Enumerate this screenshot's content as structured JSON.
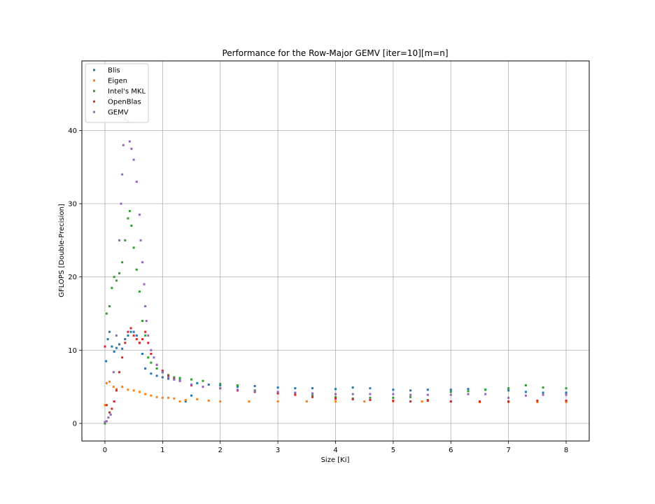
{
  "chart_data": {
    "type": "scatter",
    "title": "Performance for the Row-Major GEMV [iter=10][m=n]",
    "xlabel": "Size [Ki]",
    "ylabel": "GFLOPS [Double-Precision]",
    "xlim": [
      -0.4,
      8.4
    ],
    "ylim": [
      -2.4,
      49.5
    ],
    "xticks": [
      0,
      1,
      2,
      3,
      4,
      5,
      6,
      7,
      8
    ],
    "yticks": [
      0,
      10,
      20,
      30,
      40
    ],
    "xtick_labels": [
      "0",
      "1",
      "2",
      "3",
      "4",
      "5",
      "6",
      "7",
      "8"
    ],
    "ytick_labels": [
      "0",
      "10",
      "20",
      "30",
      "40"
    ],
    "grid": true,
    "legend_position": "top-left",
    "series": [
      {
        "name": "Blis",
        "color": "#1f77b4",
        "points": [
          [
            0,
            0
          ],
          [
            0.02,
            8.5
          ],
          [
            0.05,
            11.5
          ],
          [
            0.08,
            12.5
          ],
          [
            0.12,
            10.5
          ],
          [
            0.16,
            9.8
          ],
          [
            0.2,
            10.3
          ],
          [
            0.25,
            10.8
          ],
          [
            0.3,
            10.2
          ],
          [
            0.35,
            11.5
          ],
          [
            0.4,
            12
          ],
          [
            0.45,
            12.5
          ],
          [
            0.5,
            12.5
          ],
          [
            0.55,
            12
          ],
          [
            0.6,
            11
          ],
          [
            0.65,
            9.5
          ],
          [
            0.7,
            7.5
          ],
          [
            0.8,
            6.8
          ],
          [
            0.9,
            6.5
          ],
          [
            1,
            6.3
          ],
          [
            1.1,
            6.1
          ],
          [
            1.2,
            6
          ],
          [
            1.3,
            5.9
          ],
          [
            1.4,
            3
          ],
          [
            1.5,
            3.8
          ],
          [
            1.6,
            5.5
          ],
          [
            1.8,
            5.3
          ],
          [
            2,
            5.2
          ],
          [
            2.3,
            5
          ],
          [
            2.6,
            5.1
          ],
          [
            3,
            4.9
          ],
          [
            3.3,
            4.8
          ],
          [
            3.6,
            4.8
          ],
          [
            4,
            4.7
          ],
          [
            4.3,
            4.9
          ],
          [
            4.6,
            4.8
          ],
          [
            5,
            4.6
          ],
          [
            5.3,
            4.5
          ],
          [
            5.6,
            4.6
          ],
          [
            6,
            4.6
          ],
          [
            6.3,
            4.7
          ],
          [
            6.6,
            4.6
          ],
          [
            7,
            4.5
          ],
          [
            7.3,
            4.3
          ],
          [
            7.6,
            4.2
          ],
          [
            8,
            4.2
          ]
        ]
      },
      {
        "name": "Eigen",
        "color": "#ff7f0e",
        "points": [
          [
            0,
            2.5
          ],
          [
            0.03,
            5.5
          ],
          [
            0.08,
            5.7
          ],
          [
            0.15,
            5
          ],
          [
            0.2,
            4.7
          ],
          [
            0.3,
            5
          ],
          [
            0.4,
            4.6
          ],
          [
            0.5,
            4.5
          ],
          [
            0.6,
            4.3
          ],
          [
            0.7,
            4
          ],
          [
            0.8,
            3.8
          ],
          [
            0.9,
            3.6
          ],
          [
            1,
            3.5
          ],
          [
            1.1,
            3.5
          ],
          [
            1.2,
            3.4
          ],
          [
            1.3,
            3
          ],
          [
            1.4,
            3.2
          ],
          [
            1.6,
            3.3
          ],
          [
            1.8,
            3.1
          ],
          [
            2,
            3
          ],
          [
            2.5,
            3
          ],
          [
            3,
            3
          ],
          [
            3.5,
            3
          ],
          [
            4,
            3
          ],
          [
            4.5,
            3
          ],
          [
            5,
            3
          ],
          [
            5.5,
            3
          ],
          [
            6,
            3
          ],
          [
            6.5,
            2.9
          ],
          [
            7,
            2.9
          ],
          [
            7.5,
            2.9
          ],
          [
            8,
            2.9
          ]
        ]
      },
      {
        "name": "Intel's MKL",
        "color": "#2ca02c",
        "points": [
          [
            0,
            0
          ],
          [
            0.03,
            15
          ],
          [
            0.08,
            16
          ],
          [
            0.12,
            18.5
          ],
          [
            0.16,
            20
          ],
          [
            0.2,
            19.5
          ],
          [
            0.25,
            20.5
          ],
          [
            0.3,
            22
          ],
          [
            0.35,
            25
          ],
          [
            0.4,
            28
          ],
          [
            0.43,
            29
          ],
          [
            0.46,
            27
          ],
          [
            0.5,
            24
          ],
          [
            0.55,
            21
          ],
          [
            0.6,
            18
          ],
          [
            0.65,
            14
          ],
          [
            0.7,
            12
          ],
          [
            0.75,
            9
          ],
          [
            0.8,
            8.3
          ],
          [
            0.9,
            7.5
          ],
          [
            1,
            7
          ],
          [
            1.1,
            6.6
          ],
          [
            1.2,
            6.3
          ],
          [
            1.3,
            6.2
          ],
          [
            1.5,
            6
          ],
          [
            1.7,
            5.8
          ],
          [
            2,
            5.4
          ],
          [
            2.3,
            5.2
          ],
          [
            2.6,
            4.5
          ],
          [
            3,
            4.2
          ],
          [
            3.3,
            4.1
          ],
          [
            3.6,
            3.8
          ],
          [
            4,
            3.6
          ],
          [
            4.3,
            3.4
          ],
          [
            4.6,
            3.5
          ],
          [
            5,
            3.5
          ],
          [
            5.3,
            3.6
          ],
          [
            5.6,
            3.2
          ],
          [
            6,
            4.3
          ],
          [
            6.3,
            4.4
          ],
          [
            6.6,
            4.6
          ],
          [
            7,
            4.8
          ],
          [
            7.3,
            5.2
          ],
          [
            7.6,
            4.9
          ],
          [
            8,
            4.8
          ]
        ]
      },
      {
        "name": "OpenBlas",
        "color": "#d62728",
        "points": [
          [
            0,
            10.5
          ],
          [
            0.03,
            2.5
          ],
          [
            0.08,
            1.5
          ],
          [
            0.12,
            2
          ],
          [
            0.16,
            3
          ],
          [
            0.2,
            4.5
          ],
          [
            0.25,
            7
          ],
          [
            0.3,
            9
          ],
          [
            0.35,
            11
          ],
          [
            0.4,
            12.5
          ],
          [
            0.45,
            13
          ],
          [
            0.5,
            12
          ],
          [
            0.55,
            11.5
          ],
          [
            0.6,
            11
          ],
          [
            0.65,
            11.5
          ],
          [
            0.7,
            12.5
          ],
          [
            0.75,
            11
          ],
          [
            0.8,
            9.5
          ],
          [
            0.9,
            8
          ],
          [
            1,
            7.2
          ],
          [
            1.1,
            6.5
          ],
          [
            1.2,
            6.1
          ],
          [
            1.3,
            5.8
          ],
          [
            1.5,
            5.2
          ],
          [
            1.7,
            5
          ],
          [
            2,
            4.8
          ],
          [
            2.3,
            4.5
          ],
          [
            2.6,
            4.3
          ],
          [
            3,
            4.1
          ],
          [
            3.3,
            3.9
          ],
          [
            3.6,
            3.6
          ],
          [
            4,
            3.4
          ],
          [
            4.3,
            3.3
          ],
          [
            4.6,
            3.2
          ],
          [
            5,
            3.1
          ],
          [
            5.3,
            3
          ],
          [
            5.6,
            3.1
          ],
          [
            6,
            3
          ],
          [
            6.5,
            3
          ],
          [
            7,
            3
          ],
          [
            7.5,
            3.1
          ],
          [
            8,
            3.1
          ]
        ]
      },
      {
        "name": "GEMV",
        "color": "#9467bd",
        "points": [
          [
            0,
            0.2
          ],
          [
            0.03,
            0.3
          ],
          [
            0.06,
            0.8
          ],
          [
            0.1,
            1.2
          ],
          [
            0.15,
            7
          ],
          [
            0.2,
            12
          ],
          [
            0.25,
            25
          ],
          [
            0.28,
            30
          ],
          [
            0.3,
            34
          ],
          [
            0.32,
            38
          ],
          [
            0.35,
            41.5
          ],
          [
            0.4,
            41.3
          ],
          [
            0.43,
            38.5
          ],
          [
            0.46,
            37.5
          ],
          [
            0.5,
            36
          ],
          [
            0.55,
            33
          ],
          [
            0.6,
            28.5
          ],
          [
            0.62,
            25
          ],
          [
            0.65,
            22
          ],
          [
            0.68,
            19
          ],
          [
            0.7,
            16
          ],
          [
            0.72,
            14
          ],
          [
            0.75,
            12
          ],
          [
            0.8,
            10
          ],
          [
            0.85,
            9
          ],
          [
            0.9,
            8
          ],
          [
            1,
            7
          ],
          [
            1.1,
            6.3
          ],
          [
            1.2,
            6
          ],
          [
            1.3,
            5.8
          ],
          [
            1.5,
            5.3
          ],
          [
            1.7,
            5
          ],
          [
            2,
            4.8
          ],
          [
            2.3,
            4.6
          ],
          [
            2.6,
            4.4
          ],
          [
            3,
            4.3
          ],
          [
            3.3,
            4.2
          ],
          [
            3.6,
            4.1
          ],
          [
            4,
            4
          ],
          [
            4.3,
            4
          ],
          [
            4.6,
            4
          ],
          [
            5,
            4
          ],
          [
            5.3,
            3.9
          ],
          [
            5.6,
            3.9
          ],
          [
            6,
            3.9
          ],
          [
            6.3,
            4
          ],
          [
            6.6,
            4
          ],
          [
            7,
            3.5
          ],
          [
            7.3,
            3.8
          ],
          [
            7.6,
            3.9
          ],
          [
            8,
            3.9
          ]
        ]
      }
    ]
  }
}
